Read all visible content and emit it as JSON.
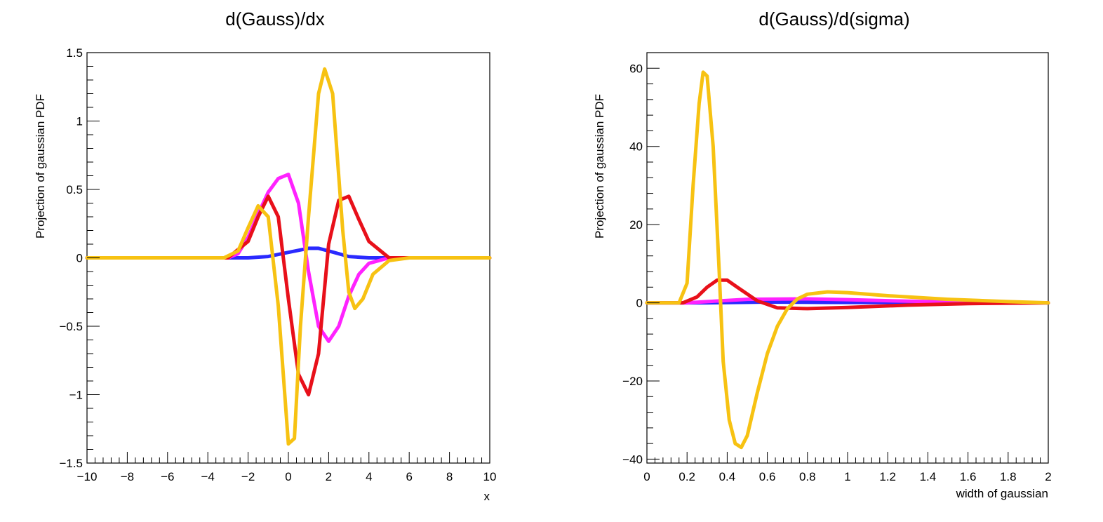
{
  "chart_data": [
    {
      "type": "line",
      "title": "d(Gauss)/dx",
      "xlabel": "x",
      "ylabel": "Projection of gaussian PDF",
      "xlim": [
        -10,
        10
      ],
      "ylim": [
        -1.5,
        1.5
      ],
      "xticks": [
        "−10",
        "−8",
        "−6",
        "−4",
        "−2",
        "0",
        "2",
        "4",
        "6",
        "8",
        "10"
      ],
      "xtick_values": [
        -10,
        -8,
        -6,
        -4,
        -2,
        0,
        2,
        4,
        6,
        8,
        10
      ],
      "yticks": [
        "−1.5",
        "−1",
        "−0.5",
        "0",
        "0.5",
        "1",
        "1.5"
      ],
      "ytick_values": [
        -1.5,
        -1,
        -0.5,
        0,
        0.5,
        1,
        1.5
      ],
      "grid": false,
      "series": [
        {
          "color": "#2a2aff",
          "x": [
            -10,
            -2,
            -1,
            0,
            1,
            1.5,
            2,
            3,
            4,
            10
          ],
          "y": [
            0,
            0,
            0.01,
            0.04,
            0.07,
            0.07,
            0.05,
            0.01,
            0,
            0
          ]
        },
        {
          "color": "#ff22ff",
          "x": [
            -10,
            -3,
            -2.5,
            -2,
            -1.5,
            -1,
            -0.5,
            0,
            0.5,
            1,
            1.5,
            2,
            2.5,
            3,
            3.5,
            4,
            5,
            10
          ],
          "y": [
            0,
            0,
            0.03,
            0.15,
            0.32,
            0.48,
            0.58,
            0.61,
            0.4,
            -0.1,
            -0.5,
            -0.61,
            -0.5,
            -0.28,
            -0.12,
            -0.04,
            0,
            0
          ]
        },
        {
          "color": "#e8101a",
          "x": [
            -10,
            -3,
            -2,
            -1.5,
            -1,
            -0.5,
            0,
            0.5,
            1,
            1.5,
            2,
            2.5,
            3,
            3.5,
            4,
            5,
            10
          ],
          "y": [
            0,
            0,
            0.12,
            0.3,
            0.45,
            0.3,
            -0.3,
            -0.85,
            -1.0,
            -0.7,
            0.1,
            0.42,
            0.45,
            0.28,
            0.12,
            0,
            0
          ]
        },
        {
          "color": "#f7c212",
          "x": [
            -10,
            -3.2,
            -2.5,
            -2,
            -1.5,
            -1,
            -0.5,
            0,
            0.3,
            0.6,
            1,
            1.5,
            1.8,
            2.2,
            2.7,
            3,
            3.3,
            3.7,
            4.2,
            5,
            6,
            10
          ],
          "y": [
            0,
            0,
            0.05,
            0.22,
            0.38,
            0.3,
            -0.35,
            -1.36,
            -1.32,
            -0.5,
            0.3,
            1.2,
            1.38,
            1.2,
            0.2,
            -0.25,
            -0.37,
            -0.3,
            -0.12,
            -0.02,
            0,
            0
          ]
        }
      ]
    },
    {
      "type": "line",
      "title": "d(Gauss)/d(sigma)",
      "xlabel": "width of gaussian",
      "ylabel": "Projection of gaussian PDF",
      "xlim": [
        0,
        2
      ],
      "ylim": [
        -41,
        64
      ],
      "xticks": [
        "0",
        "0.2",
        "0.4",
        "0.6",
        "0.8",
        "1",
        "1.2",
        "1.4",
        "1.6",
        "1.8",
        "2"
      ],
      "xtick_values": [
        0,
        0.2,
        0.4,
        0.6,
        0.8,
        1,
        1.2,
        1.4,
        1.6,
        1.8,
        2
      ],
      "yticks": [
        "−40",
        "−20",
        "0",
        "20",
        "40",
        "60"
      ],
      "ytick_values": [
        -40,
        -20,
        0,
        20,
        40,
        60
      ],
      "grid": false,
      "series": [
        {
          "color": "#2a2aff",
          "x": [
            0,
            0.3,
            0.6,
            0.9,
            2
          ],
          "y": [
            0,
            0,
            0.2,
            0.1,
            0
          ]
        },
        {
          "color": "#ff22ff",
          "x": [
            0,
            0.2,
            0.3,
            0.5,
            0.8,
            1.0,
            1.3,
            1.6,
            2
          ],
          "y": [
            0,
            0,
            0.3,
            0.9,
            1.0,
            0.8,
            0.4,
            0.1,
            0
          ]
        },
        {
          "color": "#e8101a",
          "x": [
            0,
            0.18,
            0.25,
            0.3,
            0.35,
            0.4,
            0.45,
            0.55,
            0.65,
            0.8,
            1.0,
            1.3,
            1.6,
            2
          ],
          "y": [
            0,
            0,
            1.5,
            4,
            5.8,
            5.8,
            4,
            0.5,
            -1.3,
            -1.5,
            -1.2,
            -0.6,
            -0.2,
            0
          ]
        },
        {
          "color": "#f7c212",
          "x": [
            0,
            0.16,
            0.2,
            0.23,
            0.26,
            0.28,
            0.3,
            0.33,
            0.36,
            0.38,
            0.41,
            0.44,
            0.47,
            0.5,
            0.55,
            0.6,
            0.65,
            0.7,
            0.75,
            0.8,
            0.9,
            1.0,
            1.2,
            1.5,
            1.8,
            2
          ],
          "y": [
            0,
            0,
            5,
            30,
            51,
            59,
            58,
            40,
            8,
            -15,
            -30,
            -36,
            -37,
            -34,
            -23,
            -13,
            -6,
            -1.5,
            1,
            2.2,
            2.8,
            2.6,
            1.8,
            0.9,
            0.3,
            0
          ]
        }
      ]
    }
  ]
}
